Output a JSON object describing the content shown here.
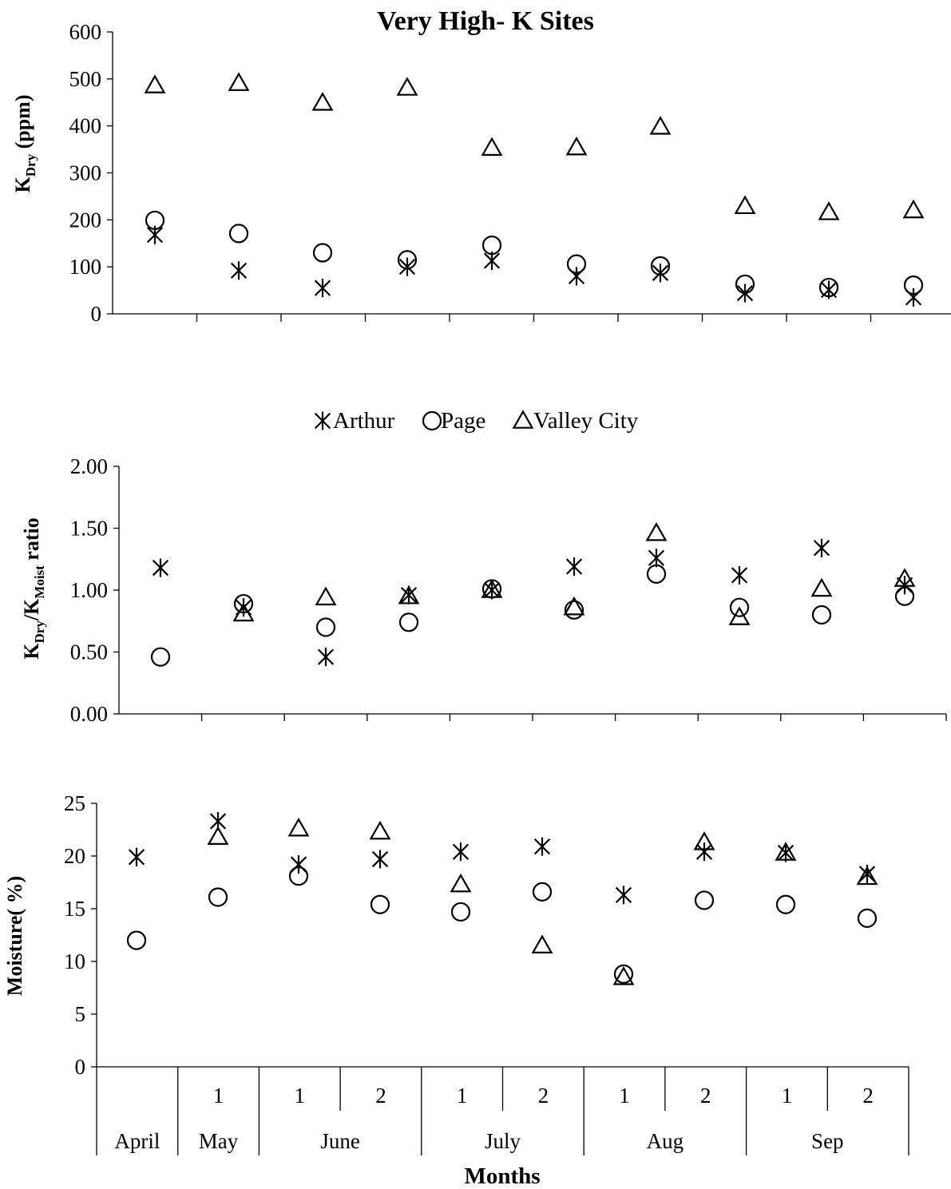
{
  "chart_data": [
    {
      "type": "scatter",
      "title": "Very High- K Sites",
      "ylabel": {
        "main": "K",
        "sub": "Dry",
        "rest": " (ppm)"
      },
      "ylim": [
        0,
        600
      ],
      "yticks": [
        "0",
        "100",
        "200",
        "300",
        "400",
        "500",
        "600"
      ],
      "grid": false,
      "series": [
        {
          "name": "Arthur",
          "marker": "asterisk",
          "values": [
            168,
            92,
            55,
            100,
            113,
            80,
            87,
            44,
            51,
            35
          ]
        },
        {
          "name": "Page",
          "marker": "circle",
          "values": [
            199,
            171,
            130,
            115,
            146,
            106,
            102,
            63,
            56,
            61
          ]
        },
        {
          "name": "Valley City",
          "marker": "triangle",
          "values": [
            486,
            491,
            449,
            481,
            353,
            354,
            398,
            229,
            216,
            220
          ]
        }
      ]
    },
    {
      "type": "scatter",
      "ylabel": {
        "main": "K",
        "sub": "Dry",
        "mid": "/K",
        "sub2": "Moist",
        "rest": " ratio"
      },
      "ylim": [
        0,
        2
      ],
      "yticks": [
        "0.00",
        "0.50",
        "1.00",
        "1.50",
        "2.00"
      ],
      "grid": false,
      "legend": "top",
      "series": [
        {
          "name": "Arthur",
          "marker": "asterisk",
          "values": [
            1.18,
            0.86,
            0.46,
            0.96,
            1.0,
            1.19,
            1.26,
            1.12,
            1.34,
            1.04
          ]
        },
        {
          "name": "Page",
          "marker": "circle",
          "values": [
            0.46,
            0.89,
            0.7,
            0.74,
            1.01,
            0.84,
            1.13,
            0.86,
            0.8,
            0.95
          ]
        },
        {
          "name": "Valley City",
          "marker": "triangle",
          "values": [
            null,
            0.81,
            0.94,
            0.95,
            1.0,
            0.86,
            1.46,
            0.78,
            1.01,
            1.09
          ]
        }
      ]
    },
    {
      "type": "scatter",
      "ylabel": {
        "main": "Moisture( %)"
      },
      "xlabel": "Months",
      "ylim": [
        0,
        25
      ],
      "yticks": [
        "0",
        "5",
        "10",
        "15",
        "20",
        "25"
      ],
      "grid": false,
      "x_sub": [
        "",
        "1",
        "1",
        "2",
        "1",
        "2",
        "1",
        "2",
        "1",
        "2"
      ],
      "x_groups": [
        {
          "label": "April",
          "span": 1
        },
        {
          "label": "May",
          "span": 1
        },
        {
          "label": "June",
          "span": 2
        },
        {
          "label": "July",
          "span": 2
        },
        {
          "label": "Aug",
          "span": 2
        },
        {
          "label": "Sep",
          "span": 2
        }
      ],
      "series": [
        {
          "name": "Arthur",
          "marker": "asterisk",
          "values": [
            19.9,
            23.3,
            19.2,
            19.7,
            20.4,
            20.9,
            16.3,
            20.4,
            20.3,
            18.3
          ]
        },
        {
          "name": "Page",
          "marker": "circle",
          "values": [
            12.0,
            16.1,
            18.1,
            15.4,
            14.7,
            16.6,
            8.8,
            15.8,
            15.4,
            14.1
          ]
        },
        {
          "name": "Valley City",
          "marker": "triangle",
          "values": [
            null,
            21.8,
            22.6,
            22.3,
            17.3,
            11.5,
            8.5,
            21.3,
            20.3,
            18.0
          ]
        }
      ]
    }
  ]
}
